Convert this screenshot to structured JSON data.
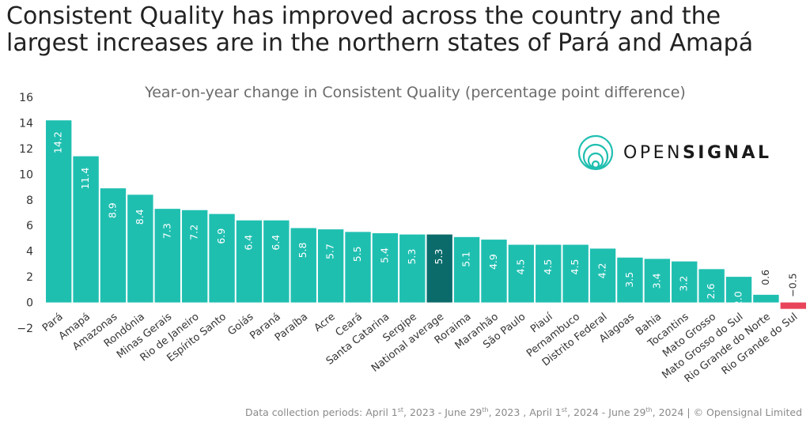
{
  "headline": {
    "line1": "Consistent Quality has improved across the country and the",
    "line2": "largest increases are in the northern states of Pará and Amapá"
  },
  "logo": {
    "part1": "OPEN",
    "part2": "SIGNAL"
  },
  "footer": {
    "prefix": "Data collection periods: April 1",
    "st1": "st",
    "seg2": ", 2023 - June 29",
    "th1": "th",
    "seg3": ", 2023 , April 1",
    "st2": "st",
    "seg4": ", 2024 - June 29",
    "th2": "th",
    "seg5": ", 2024",
    "separator": "|",
    "copyright": "© Opensignal Limited"
  },
  "colors": {
    "bar": "#1fbfb0",
    "highlight": "#0b6b6b",
    "negative": "#e8455a",
    "axis": "#333333"
  },
  "chart_data": {
    "type": "bar",
    "title": "Year-on-year change in Consistent Quality (percentage point difference)",
    "xlabel": "",
    "ylabel": "",
    "ylim": [
      -2,
      16
    ],
    "yticks": [
      "16",
      "14",
      "12",
      "10",
      "8",
      "6",
      "4",
      "2",
      "0",
      "−2"
    ],
    "grid": false,
    "categories": [
      "Pará",
      "Amapá",
      "Amazonas",
      "Rondônia",
      "Minas Gerais",
      "Rio de Janeiro",
      "Espírito Santo",
      "Goiás",
      "Paraná",
      "Paraíba",
      "Acre",
      "Ceará",
      "Santa Catarina",
      "Sergipe",
      "National average",
      "Roraima",
      "Maranhão",
      "São Paulo",
      "Piauí",
      "Pernambuco",
      "Distrito Federal",
      "Alagoas",
      "Bahia",
      "Tocantins",
      "Mato Grosso",
      "Mato Grosso do Sul",
      "Rio Grande do Norte",
      "Rio Grande do Sul"
    ],
    "values": [
      14.2,
      11.4,
      8.9,
      8.4,
      7.3,
      7.2,
      6.9,
      6.4,
      6.4,
      5.8,
      5.7,
      5.5,
      5.4,
      5.3,
      5.3,
      5.1,
      4.9,
      4.5,
      4.5,
      4.5,
      4.2,
      3.5,
      3.4,
      3.2,
      2.6,
      2.0,
      0.6,
      -0.5
    ],
    "value_labels": [
      "14.2",
      "11.4",
      "8.9",
      "8.4",
      "7.3",
      "7.2",
      "6.9",
      "6.4",
      "6.4",
      "5.8",
      "5.7",
      "5.5",
      "5.4",
      "5.3",
      "5.3",
      "5.1",
      "4.9",
      "4.5",
      "4.5",
      "4.5",
      "4.2",
      "3.5",
      "3.4",
      "3.2",
      "2.6",
      "2.0",
      "0.6",
      "−0.5"
    ],
    "highlight_category": "National average"
  }
}
